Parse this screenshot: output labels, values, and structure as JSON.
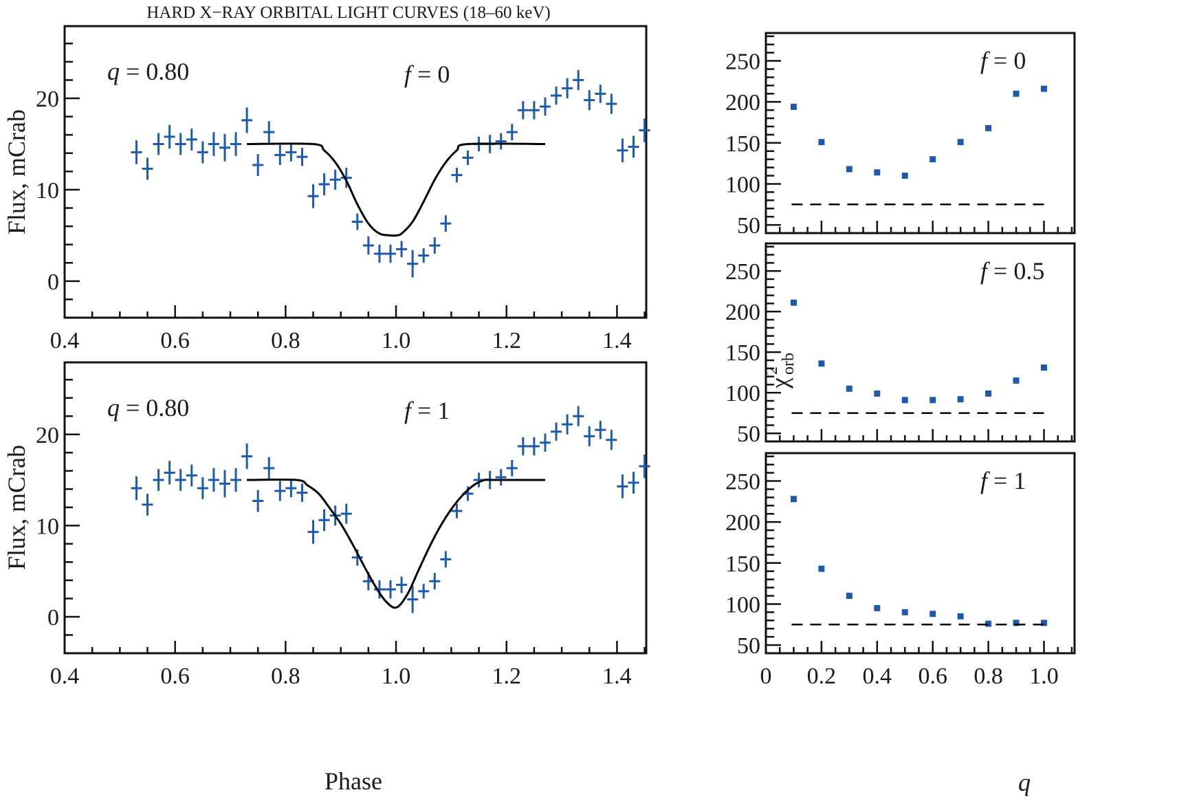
{
  "chart_data": [
    {
      "type": "scatter",
      "id": "lc_f0",
      "title": "HARD X−RAY ORBITAL LIGHT CURVES (18–60 keV)",
      "xlabel": "",
      "ylabel": "Flux, mCrab",
      "xlim": [
        0.4,
        1.453
      ],
      "ylim": [
        -4,
        27.9
      ],
      "xticks": [
        0.4,
        0.6,
        0.8,
        1.0,
        1.2,
        1.4
      ],
      "xtick_labels": [
        "0.4",
        "0.6",
        "0.8",
        "1.0",
        "1.2",
        "1.4"
      ],
      "yticks": [
        0,
        10,
        20
      ],
      "ytick_labels": [
        "0",
        "10",
        "20"
      ],
      "annotations": [
        {
          "var": "q",
          "text": " = 0.80",
          "position": "top-left"
        },
        {
          "var": "f",
          "text": " = 0",
          "position": "top-center"
        }
      ],
      "grid": false,
      "series": [
        {
          "name": "observed",
          "kind": "errorbar",
          "color": "#1f5aa8"
        },
        {
          "name": "model",
          "kind": "line",
          "color": "#000000",
          "x": [
            0.73,
            0.85,
            0.87,
            0.89,
            0.91,
            0.93,
            0.95,
            0.97,
            0.99,
            1.0,
            1.01,
            1.03,
            1.05,
            1.07,
            1.09,
            1.11,
            1.13,
            1.27
          ],
          "y": [
            15.0,
            15.0,
            14.3,
            13.0,
            11.0,
            8.4,
            6.3,
            5.2,
            5.0,
            5.0,
            5.2,
            6.5,
            8.7,
            11.1,
            13.0,
            14.3,
            15.0,
            15.0
          ]
        }
      ]
    },
    {
      "type": "scatter",
      "id": "lc_f1",
      "xlabel": "Phase",
      "ylabel": "Flux, mCrab",
      "xlim": [
        0.4,
        1.453
      ],
      "ylim": [
        -4,
        27.9
      ],
      "xticks": [
        0.4,
        0.6,
        0.8,
        1.0,
        1.2,
        1.4
      ],
      "xtick_labels": [
        "0.4",
        "0.6",
        "0.8",
        "1.0",
        "1.2",
        "1.4"
      ],
      "yticks": [
        0,
        10,
        20
      ],
      "ytick_labels": [
        "0",
        "10",
        "20"
      ],
      "annotations": [
        {
          "var": "q",
          "text": " = 0.80",
          "position": "top-left"
        },
        {
          "var": "f",
          "text": " = 1",
          "position": "top-center"
        }
      ],
      "grid": false,
      "series": [
        {
          "name": "observed",
          "kind": "errorbar",
          "color": "#1f5aa8"
        },
        {
          "name": "model",
          "kind": "line",
          "color": "#000000",
          "x": [
            0.73,
            0.82,
            0.84,
            0.86,
            0.88,
            0.9,
            0.92,
            0.94,
            0.96,
            0.98,
            1.0,
            1.02,
            1.04,
            1.06,
            1.08,
            1.1,
            1.12,
            1.14,
            1.16,
            1.18,
            1.27
          ],
          "y": [
            15.0,
            15.0,
            14.4,
            13.5,
            11.9,
            10.2,
            8.1,
            5.8,
            3.6,
            1.8,
            1.0,
            2.4,
            5.0,
            7.6,
            9.9,
            11.8,
            13.3,
            14.4,
            15.0,
            15.0,
            15.0
          ]
        }
      ]
    },
    {
      "type": "scatter",
      "id": "chi_f0",
      "xlabel": "",
      "ylabel": "",
      "xlim": [
        0,
        1.11
      ],
      "ylim": [
        40,
        284
      ],
      "xticks": [
        0,
        0.2,
        0.4,
        0.6,
        0.8,
        1.0
      ],
      "yticks": [
        50,
        100,
        150,
        200,
        250
      ],
      "ytick_labels": [
        "50",
        "100",
        "150",
        "200",
        "250"
      ],
      "annotations": [
        {
          "var": "f",
          "text": " = 0",
          "position": "top-right"
        }
      ],
      "grid": false,
      "series": [
        {
          "name": "chi2",
          "kind": "square",
          "color": "#1f5aa8",
          "x": [
            0.1,
            0.2,
            0.3,
            0.4,
            0.5,
            0.6,
            0.7,
            0.8,
            0.9,
            1.0
          ],
          "y": [
            194,
            151,
            118,
            114,
            110,
            130,
            151,
            168,
            210,
            216
          ]
        },
        {
          "name": "threshold",
          "kind": "dashed",
          "color": "#000000",
          "x": [
            0.1,
            1.0
          ],
          "y": [
            75,
            75
          ]
        }
      ]
    },
    {
      "type": "scatter",
      "id": "chi_f05",
      "xlabel": "",
      "ylabel": "χ²orb",
      "xlim": [
        0,
        1.11
      ],
      "ylim": [
        40,
        284
      ],
      "xticks": [
        0,
        0.2,
        0.4,
        0.6,
        0.8,
        1.0
      ],
      "yticks": [
        50,
        100,
        150,
        200,
        250
      ],
      "ytick_labels": [
        "50",
        "100",
        "150",
        "200",
        "250"
      ],
      "annotations": [
        {
          "var": "f",
          "text": " = 0.5",
          "position": "top-right"
        }
      ],
      "grid": false,
      "series": [
        {
          "name": "chi2",
          "kind": "square",
          "color": "#1f5aa8",
          "x": [
            0.1,
            0.2,
            0.3,
            0.4,
            0.5,
            0.6,
            0.7,
            0.8,
            0.9,
            1.0
          ],
          "y": [
            211,
            136,
            105,
            99,
            91,
            91,
            92,
            99,
            115,
            131
          ]
        },
        {
          "name": "threshold",
          "kind": "dashed",
          "color": "#000000",
          "x": [
            0.1,
            1.0
          ],
          "y": [
            75,
            75
          ]
        }
      ]
    },
    {
      "type": "scatter",
      "id": "chi_f1",
      "xlabel": "q",
      "ylabel": "",
      "xlim": [
        0,
        1.11
      ],
      "ylim": [
        40,
        284
      ],
      "xticks": [
        0,
        0.2,
        0.4,
        0.6,
        0.8,
        1.0
      ],
      "xtick_labels": [
        "0",
        "0.2",
        "0.4",
        "0.6",
        "0.8",
        "1.0"
      ],
      "yticks": [
        50,
        100,
        150,
        200,
        250
      ],
      "ytick_labels": [
        "50",
        "100",
        "150",
        "200",
        "250"
      ],
      "annotations": [
        {
          "var": "f",
          "text": " = 1",
          "position": "top-right"
        }
      ],
      "grid": false,
      "series": [
        {
          "name": "chi2",
          "kind": "square",
          "color": "#1f5aa8",
          "x": [
            0.1,
            0.2,
            0.3,
            0.4,
            0.5,
            0.6,
            0.7,
            0.8,
            0.9,
            1.0
          ],
          "y": [
            228,
            143,
            110,
            95,
            90,
            88,
            85,
            76,
            77,
            77
          ]
        },
        {
          "name": "threshold",
          "kind": "dashed",
          "color": "#000000",
          "x": [
            0.1,
            1.0
          ],
          "y": [
            75,
            75
          ]
        }
      ]
    }
  ],
  "observations": {
    "phase": [
      0.53,
      0.55,
      0.57,
      0.59,
      0.61,
      0.63,
      0.65,
      0.67,
      0.69,
      0.71,
      0.73,
      0.75,
      0.77,
      0.79,
      0.81,
      0.83,
      0.85,
      0.87,
      0.89,
      0.91,
      0.93,
      0.95,
      0.97,
      0.99,
      1.01,
      1.03,
      1.05,
      1.07,
      1.09,
      1.11,
      1.13,
      1.15,
      1.17,
      1.19,
      1.21,
      1.23,
      1.25,
      1.27,
      1.29,
      1.31,
      1.33,
      1.35,
      1.37,
      1.39,
      1.41,
      1.43,
      1.45
    ],
    "flux": [
      14.1,
      12.3,
      15.0,
      15.8,
      15.0,
      15.5,
      14.1,
      15.0,
      14.6,
      15.0,
      17.6,
      12.7,
      16.3,
      13.8,
      14.1,
      13.6,
      9.3,
      10.6,
      11.1,
      11.3,
      6.5,
      3.9,
      3.0,
      3.0,
      3.5,
      1.9,
      2.8,
      3.9,
      6.3,
      11.6,
      13.5,
      15.0,
      15.0,
      15.3,
      16.3,
      18.7,
      18.7,
      19.1,
      20.3,
      21.1,
      22.0,
      19.8,
      20.5,
      19.4,
      14.3,
      14.7,
      16.5
    ],
    "flux_err": [
      1.3,
      1.2,
      1.2,
      1.3,
      1.2,
      1.2,
      1.2,
      1.3,
      1.5,
      1.3,
      1.4,
      1.2,
      1.2,
      1.1,
      1.0,
      1.0,
      1.3,
      1.2,
      1.1,
      1.1,
      0.9,
      1.0,
      1.0,
      1.0,
      0.9,
      1.5,
      0.8,
      0.9,
      0.9,
      0.8,
      0.8,
      0.8,
      1.0,
      0.9,
      0.9,
      1.0,
      1.0,
      1.0,
      1.0,
      1.1,
      1.1,
      1.1,
      1.0,
      1.1,
      1.3,
      1.2,
      1.3
    ],
    "phase_halfwidth": 0.01
  },
  "labels": {
    "fig_title": "HARD X−RAY ORBITAL LIGHT CURVES (18–60 keV)",
    "ylabel_left": "Flux, mCrab",
    "xlabel_left": "Phase",
    "ylabel_right_chi": "χ",
    "ylabel_right_sup": "2",
    "ylabel_right_sub": "orb",
    "xlabel_right": "q",
    "q_var": "q",
    "f_var": "f",
    "q_value_text": " = 0.80",
    "f0_text": " = 0",
    "f1_text": " = 1",
    "f05_text": " = 0.5"
  },
  "colors": {
    "data": "#1f5aa8",
    "model": "#000000",
    "axis": "#111111"
  }
}
